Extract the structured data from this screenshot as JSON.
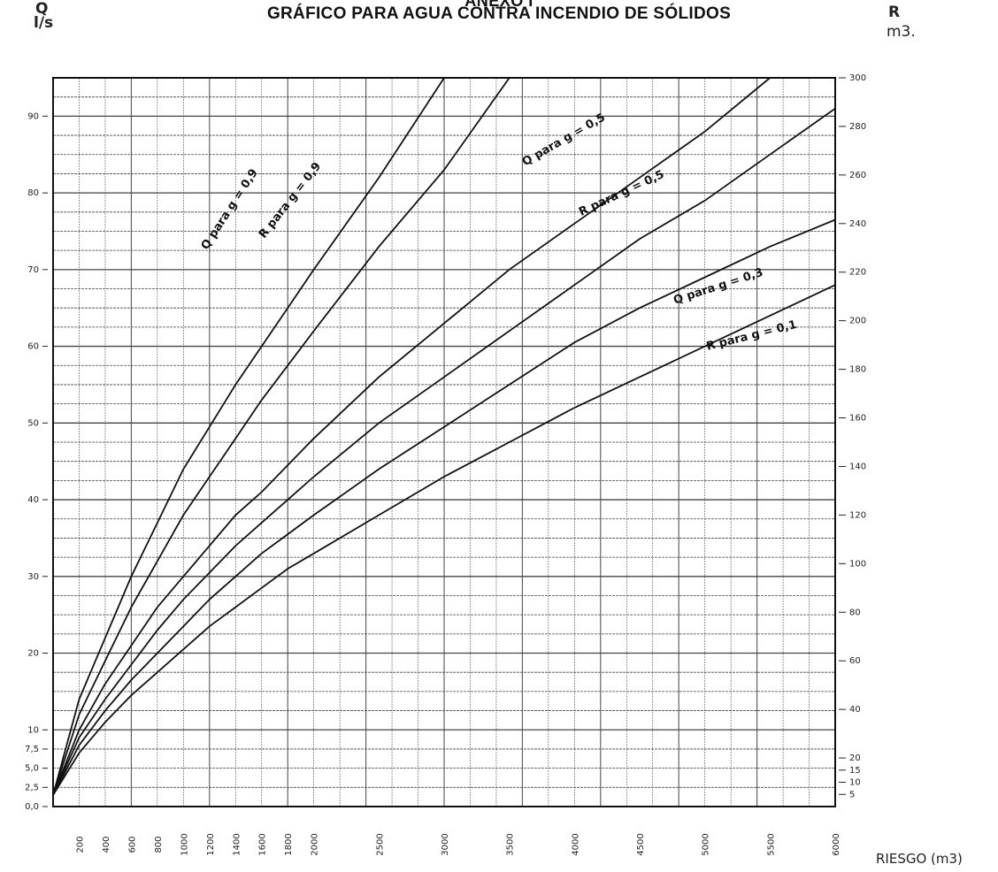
{
  "header": {
    "annex": "ANEXO I",
    "title": "GRÁFICO PARA AGUA CONTRA INCENDIO DE SÓLIDOS",
    "left_axis_symbol": "Q",
    "left_axis_unit": "l/s",
    "right_axis_symbol": "R",
    "right_axis_unit": "m3."
  },
  "chart_data": {
    "type": "line",
    "title": "GRÁFICO PARA AGUA CONTRA INCENDIO DE SÓLIDOS",
    "xlabel": "RIESGO (m3)",
    "ylabel_left": "Q l/s",
    "ylabel_right": "R m3.",
    "grid": true,
    "y_left_ticks": [
      "0,0",
      "2,5",
      "5,0",
      "7,5",
      "10",
      "20",
      "30",
      "40",
      "50",
      "60",
      "70",
      "80",
      "90"
    ],
    "y_right_ticks": [
      "5",
      "10",
      "15",
      "20",
      "40",
      "60",
      "80",
      "100",
      "120",
      "140",
      "160",
      "180",
      "200",
      "220",
      "240",
      "260",
      "280",
      "300"
    ],
    "x_ticks": [
      "200",
      "400",
      "600",
      "800",
      "1000",
      "1200",
      "1400",
      "1600",
      "1800",
      "2000",
      "2500",
      "3000",
      "3500",
      "4000",
      "4500",
      "5000",
      "5500",
      "6000"
    ],
    "series": [
      {
        "name": "Q para g = 0,9",
        "x": [
          0,
          200,
          400,
          600,
          800,
          1000,
          1200,
          1400,
          1600,
          1800,
          2000,
          2500,
          3000
        ],
        "y": [
          1.5,
          14,
          22,
          30,
          37,
          44,
          49.5,
          55,
          60,
          65,
          70,
          82,
          95
        ]
      },
      {
        "name": "R para g = 0,9",
        "x": [
          0,
          200,
          400,
          600,
          800,
          1000,
          1200,
          1400,
          1600,
          1800,
          2000,
          2500,
          3000,
          3500
        ],
        "y": [
          1.5,
          12,
          19,
          26,
          32,
          38,
          43,
          48,
          53,
          57.5,
          62,
          73,
          83,
          95
        ]
      },
      {
        "name": "Q para g = 0,5",
        "x": [
          0,
          200,
          400,
          600,
          800,
          1000,
          1200,
          1400,
          1600,
          1800,
          2000,
          2500,
          3000,
          3500,
          4000,
          4500,
          5000,
          5500
        ],
        "y": [
          1.5,
          10,
          16,
          21,
          26,
          30,
          34,
          38,
          41,
          44.5,
          48,
          56,
          63,
          70,
          76,
          82,
          88,
          95
        ]
      },
      {
        "name": "R para g = 0,5",
        "x": [
          0,
          200,
          400,
          600,
          800,
          1000,
          1200,
          1400,
          1600,
          1800,
          2000,
          2500,
          3000,
          3500,
          4000,
          4500,
          5000,
          5500,
          6000
        ],
        "y": [
          1.5,
          9,
          14,
          18.5,
          23,
          27,
          30.5,
          34,
          37,
          40,
          43,
          50,
          56,
          62,
          68,
          74,
          79,
          85,
          91
        ]
      },
      {
        "name": "Q para g = 0,3",
        "x": [
          0,
          200,
          400,
          600,
          800,
          1000,
          1200,
          1400,
          1600,
          1800,
          2000,
          2500,
          3000,
          3500,
          4000,
          4500,
          5000,
          5500,
          6000
        ],
        "y": [
          1.5,
          8,
          12.5,
          16.5,
          20,
          23.5,
          27,
          30,
          33,
          35.5,
          38,
          44,
          49.5,
          55,
          60.5,
          65,
          69,
          73,
          76.5
        ]
      },
      {
        "name": "R para g = 0,1",
        "x": [
          0,
          200,
          400,
          600,
          800,
          1000,
          1200,
          1400,
          1600,
          1800,
          2000,
          2500,
          3000,
          3500,
          4000,
          4500,
          5000,
          5500,
          6000
        ],
        "y": [
          1.5,
          7,
          11,
          14.5,
          17.5,
          20.5,
          23.5,
          26,
          28.5,
          31,
          33,
          38,
          43,
          47.5,
          52,
          56,
          60,
          64,
          68
        ]
      }
    ],
    "curve_labels": [
      "Q para g = 0,9",
      "R para g = 0,9",
      "Q para g = 0,5",
      "R para g = 0,5",
      "Q para g = 0,3",
      "R para g = 0,1"
    ]
  }
}
